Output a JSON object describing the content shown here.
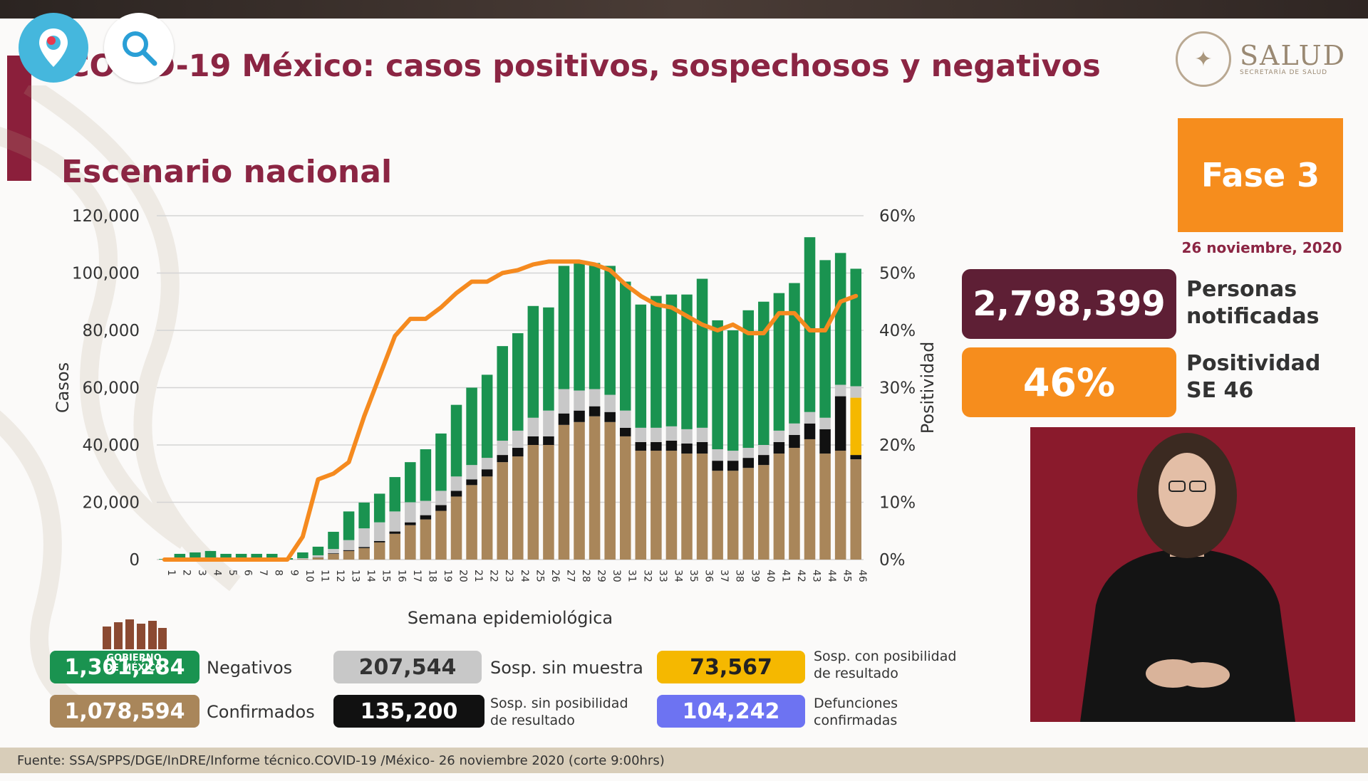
{
  "header": {
    "title": "COVID-19 México: casos positivos, sospechosos y negativos",
    "subtitle": "Escenario nacional",
    "logo_text": "SALUD",
    "logo_subtext": "SECRETARÍA DE SALUD"
  },
  "overlay_buttons": [
    {
      "icon": "periscope-pin-icon"
    },
    {
      "icon": "search-icon"
    }
  ],
  "colors": {
    "negativos": "#1a9350",
    "sin_muestra": "#c8c8c8",
    "sin_posibilidad": "#111111",
    "con_posibilidad": "#f5b800",
    "confirmados": "#a9865a",
    "positividad": "#f58a1f",
    "defunciones": "#6d73f2",
    "brand": "#8b2543"
  },
  "sidebar": {
    "fase": "Fase 3",
    "date": "26 noviembre, 2020",
    "notificadas_value": "2,798,399",
    "notificadas_label_1": "Personas",
    "notificadas_label_2": "notificadas",
    "positividad_value": "46%",
    "positividad_label_1": "Positividad",
    "positividad_label_2": "SE 46"
  },
  "legend": {
    "negativos_value": "1,301,284",
    "negativos_label": "Negativos",
    "confirmados_value": "1,078,594",
    "confirmados_label": "Confirmados",
    "sin_muestra_value": "207,544",
    "sin_muestra_label": "Sosp. sin muestra",
    "sin_posibilidad_value": "135,200",
    "sin_posibilidad_label_1": "Sosp. sin posibilidad",
    "sin_posibilidad_label_2": "de resultado",
    "con_posibilidad_value": "73,567",
    "con_posibilidad_label_1": "Sosp. con posibilidad",
    "con_posibilidad_label_2": "de resultado",
    "defunciones_value": "104,242",
    "defunciones_label_1": "Defunciones",
    "defunciones_label_2": "confirmadas",
    "gobierno_text": "GOBIERNO DE MÉXICO"
  },
  "footer": {
    "source": "Fuente: SSA/SPPS/DGE/InDRE/Informe técnico.COVID-19 /México- 26 noviembre 2020 (corte 9:00hrs)"
  },
  "chart_data": {
    "type": "bar",
    "stacked": true,
    "xlabel": "Semana epidemiológica",
    "ylabel": "Casos",
    "y2label": "Positividad",
    "ylim": [
      0,
      120000
    ],
    "y2lim": [
      0,
      60
    ],
    "yticks": [
      "0",
      "20,000",
      "40,000",
      "60,000",
      "80,000",
      "100,000",
      "120,000"
    ],
    "y2ticks": [
      "0%",
      "10%",
      "20%",
      "30%",
      "40%",
      "50%",
      "60%"
    ],
    "categories": [
      "1",
      "2",
      "3",
      "4",
      "5",
      "6",
      "7",
      "8",
      "9",
      "10",
      "11",
      "12",
      "13",
      "14",
      "15",
      "16",
      "17",
      "18",
      "19",
      "20",
      "21",
      "22",
      "23",
      "24",
      "25",
      "26",
      "27",
      "28",
      "29",
      "30",
      "31",
      "32",
      "33",
      "34",
      "35",
      "36",
      "37",
      "38",
      "39",
      "40",
      "41",
      "42",
      "43",
      "44",
      "45",
      "46"
    ],
    "series": [
      {
        "name": "Confirmados",
        "values": [
          0,
          0,
          0,
          0,
          0,
          0,
          0,
          0,
          0,
          200,
          700,
          2000,
          3000,
          4000,
          6000,
          9000,
          12000,
          14000,
          17000,
          22000,
          26000,
          29000,
          34000,
          36000,
          40000,
          40000,
          47000,
          48000,
          50000,
          48000,
          43000,
          38000,
          38000,
          38000,
          37000,
          37000,
          31000,
          31000,
          32000,
          33000,
          37000,
          39000,
          42000,
          37000,
          38000,
          35000
        ]
      },
      {
        "name": "Sosp. sin posibilidad de resultado",
        "values": [
          0,
          0,
          0,
          0,
          0,
          0,
          0,
          0,
          0,
          0,
          100,
          200,
          300,
          400,
          500,
          800,
          1000,
          1500,
          2000,
          2000,
          2000,
          2500,
          2500,
          3000,
          3000,
          3000,
          4000,
          4000,
          3500,
          3500,
          3000,
          3000,
          3000,
          3500,
          3500,
          4000,
          3500,
          3500,
          3500,
          3500,
          4000,
          4500,
          5500,
          8500,
          19000,
          1500
        ]
      },
      {
        "name": "Sosp. con posibilidad de resultado",
        "values": [
          0,
          0,
          0,
          0,
          0,
          0,
          0,
          0,
          0,
          0,
          0,
          0,
          0,
          0,
          0,
          0,
          0,
          0,
          0,
          0,
          0,
          0,
          0,
          0,
          0,
          0,
          0,
          0,
          0,
          0,
          0,
          0,
          0,
          0,
          0,
          0,
          0,
          0,
          0,
          0,
          0,
          0,
          0,
          0,
          0,
          20000
        ]
      },
      {
        "name": "Sosp. sin muestra",
        "values": [
          0,
          0,
          0,
          0,
          0,
          0,
          0,
          0,
          0,
          300,
          700,
          1500,
          3500,
          6500,
          6500,
          7000,
          7000,
          5000,
          5000,
          5000,
          5000,
          4000,
          5000,
          6000,
          6500,
          9000,
          8500,
          7000,
          6000,
          6000,
          6000,
          5000,
          5000,
          5000,
          5000,
          5000,
          4000,
          3500,
          3500,
          3500,
          4000,
          4000,
          4000,
          4000,
          4000,
          4000
        ]
      },
      {
        "name": "Negativos",
        "values": [
          200,
          2000,
          2500,
          3000,
          2000,
          2000,
          2000,
          2000,
          500,
          2000,
          3000,
          6000,
          10000,
          9000,
          10000,
          12000,
          14000,
          18000,
          20000,
          25000,
          27000,
          29000,
          33000,
          34000,
          39000,
          36000,
          43000,
          45000,
          44000,
          45000,
          45000,
          43000,
          46000,
          46000,
          47000,
          52000,
          45000,
          42000,
          48000,
          50000,
          48000,
          49000,
          61000,
          55000,
          46000,
          41000
        ]
      }
    ],
    "line": {
      "name": "Positividad",
      "axis": "y2",
      "values": [
        0,
        0,
        0,
        0,
        0,
        0,
        0,
        0,
        0,
        4,
        14,
        15,
        17,
        25,
        32,
        39,
        42,
        42,
        44,
        46.5,
        48.5,
        48.5,
        50,
        50.5,
        51.5,
        52,
        52,
        52,
        51.5,
        50.5,
        48,
        46,
        44.5,
        44,
        42.5,
        41,
        40,
        41,
        39.5,
        39.5,
        43,
        43,
        40,
        40,
        45,
        46
      ]
    },
    "legend": "bottom",
    "grid": true
  }
}
